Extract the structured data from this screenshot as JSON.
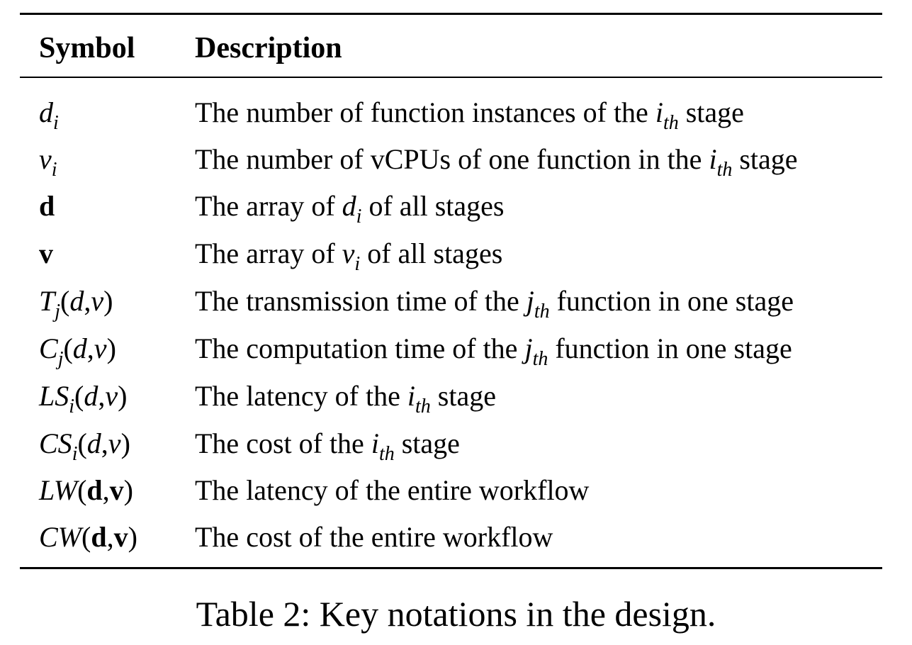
{
  "table": {
    "header": {
      "symbol": "Symbol",
      "description": "Description"
    },
    "rows": [
      {
        "desc_pre": "The number of function instances of the ",
        "desc_var": "i",
        "desc_sub": "th",
        "desc_post": " stage"
      },
      {
        "desc_pre": "The number of vCPUs of one function in the ",
        "desc_var": "i",
        "desc_sub": "th",
        "desc_post": " stage"
      },
      {
        "desc_pre": "The array of ",
        "desc_var": "d",
        "desc_sub": "i",
        "desc_post": " of all stages"
      },
      {
        "desc_pre": "The array of ",
        "desc_var": "v",
        "desc_sub": "i",
        "desc_post": " of all stages"
      },
      {
        "desc_pre": "The transmission time of the ",
        "desc_var": "j",
        "desc_sub": "th",
        "desc_post": " function in one stage"
      },
      {
        "desc_pre": "The computation time of the ",
        "desc_var": "j",
        "desc_sub": "th",
        "desc_post": " function in one stage"
      },
      {
        "desc_pre": "The latency of the ",
        "desc_var": "i",
        "desc_sub": "th",
        "desc_post": " stage"
      },
      {
        "desc_pre": "The cost of the ",
        "desc_var": "i",
        "desc_sub": "th",
        "desc_post": " stage"
      },
      {
        "desc_pre": "The latency of the entire workflow",
        "desc_var": "",
        "desc_sub": "",
        "desc_post": ""
      },
      {
        "desc_pre": "The cost of the entire workflow",
        "desc_var": "",
        "desc_sub": "",
        "desc_post": ""
      }
    ],
    "symbols": {
      "r0": {
        "base": "d",
        "sub": "i"
      },
      "r1": {
        "base": "v",
        "sub": "i"
      },
      "r2": {
        "base": "d"
      },
      "r3": {
        "base": "v"
      },
      "r4": {
        "base": "T",
        "sub": "j",
        "open": "(",
        "a1": "d",
        "comma": ",",
        "a2": "v",
        "close": ")"
      },
      "r5": {
        "base": "C",
        "sub": "j",
        "open": "(",
        "a1": "d",
        "comma": ",",
        "a2": "v",
        "close": ")"
      },
      "r6": {
        "base": "LS",
        "sub": "i",
        "open": "(",
        "a1": "d",
        "comma": ",",
        "a2": "v",
        "close": ")"
      },
      "r7": {
        "base": "CS",
        "sub": "i",
        "open": "(",
        "a1": "d",
        "comma": ",",
        "a2": "v",
        "close": ")"
      },
      "r8": {
        "base": "LW",
        "open": "(",
        "a1": "d",
        "comma": ",",
        "a2": "v",
        "close": ")"
      },
      "r9": {
        "base": "CW",
        "open": "(",
        "a1": "d",
        "comma": ",",
        "a2": "v",
        "close": ")"
      }
    }
  },
  "caption": "Table 2: Key notations in the design."
}
